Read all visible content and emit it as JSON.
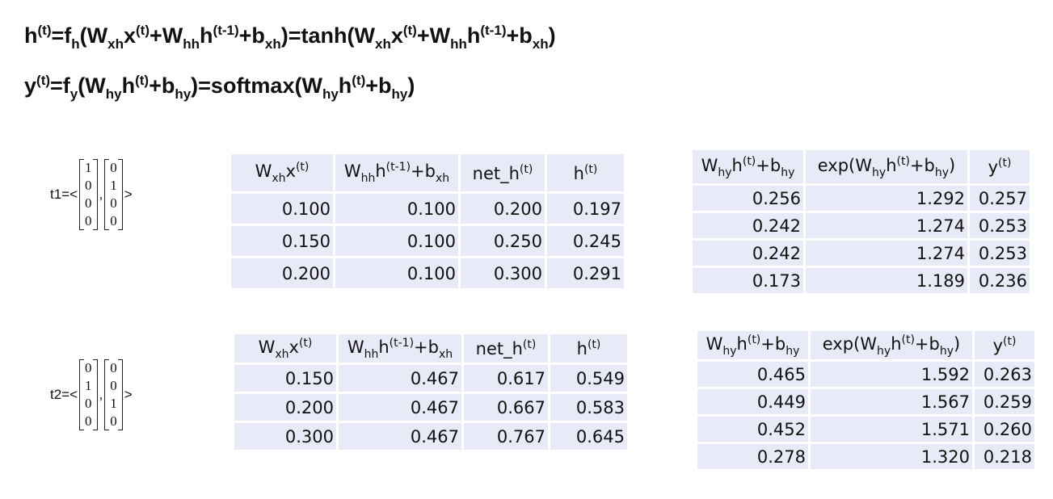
{
  "formulas": [
    [
      {
        "text": "h",
        "sup": "(t)"
      },
      {
        "text": "=f",
        "sub": "h"
      },
      {
        "text": "(W",
        "sub": "xh"
      },
      {
        "text": "x",
        "sup": "(t)"
      },
      {
        "text": "+W",
        "sub": "hh"
      },
      {
        "text": "h",
        "sup": "(t-1)"
      },
      {
        "text": "+b",
        "sub": "xh"
      },
      {
        "text": ")=tanh(W",
        "sub": "xh"
      },
      {
        "text": "x",
        "sup": "(t)"
      },
      {
        "text": "+W",
        "sub": "hh"
      },
      {
        "text": "h",
        "sup": "(t-1)"
      },
      {
        "text": "+b",
        "sub": "xh"
      },
      {
        "text": ")"
      }
    ],
    [
      {
        "text": "y",
        "sup": "(t)"
      },
      {
        "text": "=f",
        "sub": "y"
      },
      {
        "text": "(W",
        "sub": "hy"
      },
      {
        "text": "h",
        "sup": "(t)"
      },
      {
        "text": "+b",
        "sub": "hy"
      },
      {
        "text": ")=softmax(W",
        "sub": "hy"
      },
      {
        "text": "h",
        "sup": "(t)"
      },
      {
        "text": "+b",
        "sub": "hy"
      },
      {
        "text": ")"
      }
    ]
  ],
  "steps": [
    {
      "label": "t1=<",
      "vectors": [
        [
          "1",
          "0",
          "0",
          "0"
        ],
        [
          "0",
          "1",
          "0",
          "0"
        ]
      ],
      "separator": ",",
      "close": ">",
      "hidden_table": {
        "header": [
          [
            {
              "text": "W",
              "sub": "xh"
            },
            {
              "text": "x",
              "sup": "(t)"
            }
          ],
          [
            {
              "text": "W",
              "sub": "hh"
            },
            {
              "text": "h",
              "sup": "(t-1)"
            },
            {
              "text": "+b",
              "sub": "xh"
            }
          ],
          [
            {
              "text": "net_h",
              "sup": "(t)"
            }
          ],
          [
            {
              "text": "h",
              "sup": "(t)"
            }
          ]
        ],
        "rows": [
          [
            "0.100",
            "0.100",
            "0.200",
            "0.197"
          ],
          [
            "0.150",
            "0.100",
            "0.250",
            "0.245"
          ],
          [
            "0.200",
            "0.100",
            "0.300",
            "0.291"
          ]
        ]
      },
      "output_table": {
        "header": [
          [
            {
              "text": "W",
              "sub": "hy"
            },
            {
              "text": "h",
              "sup": "(t)"
            },
            {
              "text": "+b",
              "sub": "hy"
            }
          ],
          [
            {
              "text": "exp(W",
              "sub": "hy"
            },
            {
              "text": "h",
              "sup": "(t)"
            },
            {
              "text": "+b",
              "sub": "hy"
            },
            {
              "text": ")"
            }
          ],
          [
            {
              "text": "y",
              "sup": "(t)"
            }
          ]
        ],
        "rows": [
          [
            "0.256",
            "1.292",
            "0.257"
          ],
          [
            "0.242",
            "1.274",
            "0.253"
          ],
          [
            "0.242",
            "1.274",
            "0.253"
          ],
          [
            "0.173",
            "1.189",
            "0.236"
          ]
        ]
      }
    },
    {
      "label": "t2=<",
      "vectors": [
        [
          "0",
          "1",
          "0",
          "0"
        ],
        [
          "0",
          "0",
          "1",
          "0"
        ]
      ],
      "separator": ",",
      "close": ">",
      "hidden_table": {
        "header": [
          [
            {
              "text": "W",
              "sub": "xh"
            },
            {
              "text": "x",
              "sup": "(t)"
            }
          ],
          [
            {
              "text": "W",
              "sub": "hh"
            },
            {
              "text": "h",
              "sup": "(t-1)"
            },
            {
              "text": "+b",
              "sub": "xh"
            }
          ],
          [
            {
              "text": "net_h",
              "sup": "(t)"
            }
          ],
          [
            {
              "text": "h",
              "sup": "(t)"
            }
          ]
        ],
        "rows": [
          [
            "0.150",
            "0.467",
            "0.617",
            "0.549"
          ],
          [
            "0.200",
            "0.467",
            "0.667",
            "0.583"
          ],
          [
            "0.300",
            "0.467",
            "0.767",
            "0.645"
          ]
        ]
      },
      "output_table": {
        "header": [
          [
            {
              "text": "W",
              "sub": "hy"
            },
            {
              "text": "h",
              "sup": "(t)"
            },
            {
              "text": "+b",
              "sub": "hy"
            }
          ],
          [
            {
              "text": "exp(W",
              "sub": "hy"
            },
            {
              "text": "h",
              "sup": "(t)"
            },
            {
              "text": "+b",
              "sub": "hy"
            },
            {
              "text": ")"
            }
          ],
          [
            {
              "text": "y",
              "sup": "(t)"
            }
          ]
        ],
        "rows": [
          [
            "0.465",
            "1.592",
            "0.263"
          ],
          [
            "0.449",
            "1.567",
            "0.259"
          ],
          [
            "0.452",
            "1.571",
            "0.260"
          ],
          [
            "0.278",
            "1.320",
            "0.218"
          ]
        ]
      }
    }
  ]
}
